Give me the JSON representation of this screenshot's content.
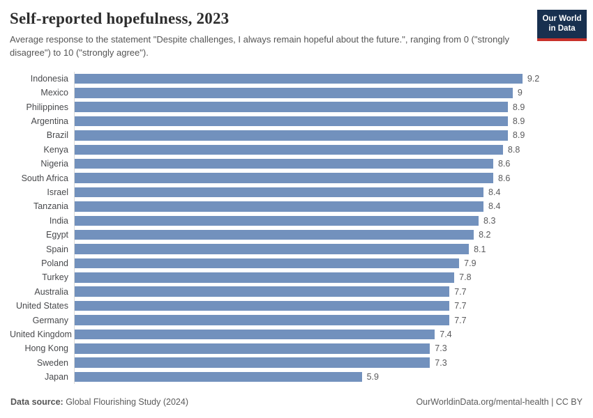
{
  "header": {
    "title": "Self-reported hopefulness, 2023",
    "subtitle": "Average response to the statement \"Despite challenges, I always remain hopeful about the future.\", ranging from 0 (\"strongly disagree\") to 10 (\"strongly agree\").",
    "logo": {
      "line1": "Our World",
      "line2": "in Data"
    }
  },
  "footer": {
    "datasource_label": "Data source:",
    "datasource_value": " Global Flourishing Study (2024)",
    "attribution": "OurWorldinData.org/mental-health | CC BY"
  },
  "colors": {
    "bar": "#7291bd",
    "axis_line": "#dadada",
    "logo_navy": "#18304f",
    "logo_red": "#c8312b",
    "title_text": "#2d2d2d",
    "subtitle_text": "#555555"
  },
  "chart_data": {
    "type": "bar",
    "orientation": "horizontal",
    "title": "Self-reported hopefulness, 2023",
    "xlabel": "",
    "ylabel": "",
    "xlim": [
      0,
      10.65
    ],
    "grid": false,
    "legend": false,
    "bar_color": "#7291bd",
    "categories": [
      "Indonesia",
      "Mexico",
      "Philippines",
      "Argentina",
      "Brazil",
      "Kenya",
      "Nigeria",
      "South Africa",
      "Israel",
      "Tanzania",
      "India",
      "Egypt",
      "Spain",
      "Poland",
      "Turkey",
      "Australia",
      "United States",
      "Germany",
      "United Kingdom",
      "Hong Kong",
      "Sweden",
      "Japan"
    ],
    "values": [
      9.2,
      9,
      8.9,
      8.9,
      8.9,
      8.8,
      8.6,
      8.6,
      8.4,
      8.4,
      8.3,
      8.2,
      8.1,
      7.9,
      7.8,
      7.7,
      7.7,
      7.7,
      7.4,
      7.3,
      7.3,
      5.9
    ],
    "value_labels": [
      "9.2",
      "9",
      "8.9",
      "8.9",
      "8.9",
      "8.8",
      "8.6",
      "8.6",
      "8.4",
      "8.4",
      "8.3",
      "8.2",
      "8.1",
      "7.9",
      "7.8",
      "7.7",
      "7.7",
      "7.7",
      "7.4",
      "7.3",
      "7.3",
      "5.9"
    ]
  }
}
